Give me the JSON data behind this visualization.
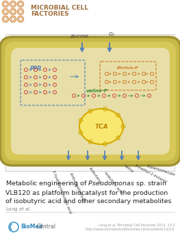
{
  "bg_color": "#ffffff",
  "header_text_line1": "MICROBIAL CELL",
  "header_text_line2": "FACTORIES",
  "header_color": "#a07040",
  "header_font_size": 6.5,
  "logo_color": "#d4904a",
  "diagram_frame_color": "#cccccc",
  "cell_fill": "#e8dfa8",
  "cell_border": "#b8a848",
  "cell_shadow": "#c8b858",
  "tca_fill": "#f8e870",
  "tca_border": "#d4a800",
  "title_fontsize": 6.8,
  "author_fontsize": 5.0,
  "citation_fontsize": 3.5,
  "arrow_color": "#5580b8",
  "ppp_color": "#5580b8",
  "ehrlich_color": "#d07828",
  "valine_color": "#3a8a3a",
  "node_color": "#cc4444",
  "glucose_label": "glucose",
  "o2_label": "$O_2$",
  "ppp_label": "PPP",
  "ehrlich_label": "Ehrlich-P",
  "valine_label": "valine-P",
  "tca_label": "TCA",
  "citation_line1": "Lang et al. Microbial Cell Factories 2014, 13:2",
  "citation_line2": "http://www.microbialcellfactories.com/content/13/1/2"
}
